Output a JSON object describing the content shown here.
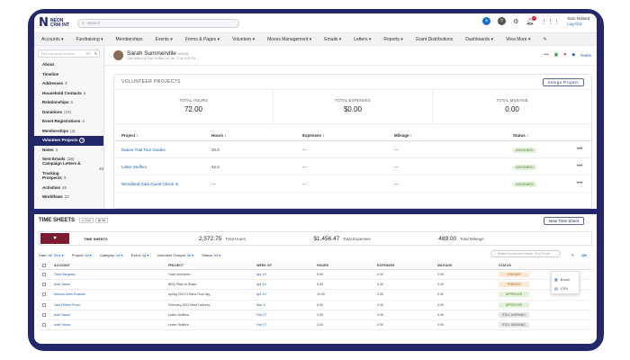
{
  "header": {
    "logo_main": "NEON",
    "logo_sub": "CRM·INT",
    "search_placeholder": "Search",
    "user_name": "Sam Noland",
    "user_action": "Log Out",
    "notif_count": "1"
  },
  "nav": [
    "Accounts ▾",
    "Fundraising ▾",
    "Memberships",
    "Events ▾",
    "Forms & Pages ▾",
    "Volunteer ▾",
    "Moves Management ▾",
    "Emails ▾",
    "Letters ▾",
    "Reports ▾",
    "Grant Distributions",
    "Dashboards ▾",
    "View More ▾"
  ],
  "sidebar": {
    "search_placeholder": "Find account section",
    "count": "27",
    "items": [
      {
        "label": "About",
        "count": ""
      },
      {
        "label": "Timeline",
        "count": ""
      },
      {
        "label": "Addresses",
        "count": "3"
      },
      {
        "label": "Household Contacts",
        "count": "5"
      },
      {
        "label": "Relationships",
        "count": "5"
      },
      {
        "label": "Donations",
        "count": "(19)"
      },
      {
        "label": "Event Registrations",
        "count": "3"
      },
      {
        "label": "Memberships",
        "count": "(3)"
      },
      {
        "label": "Volunteer Projects",
        "count": "3"
      },
      {
        "label": "Notes",
        "count": "3"
      },
      {
        "label": "Sent Emails",
        "count": "(35)"
      },
      {
        "label": "Campaign Letters & Tracking",
        "count": "49"
      },
      {
        "label": "Prospects",
        "count": "3"
      },
      {
        "label": "Activities",
        "count": "45"
      },
      {
        "label": "Workflows",
        "count": "10"
      }
    ]
  },
  "profile": {
    "name": "Sarah Summerville",
    "id": "#3945",
    "sub": "Last edited by Sam Noland on Jun 17 at 4:36 PM",
    "notes_label": "Notes"
  },
  "volunteer": {
    "title": "VOLUNTEER PROJECTS",
    "assign_label": "Assign Project",
    "stats": [
      {
        "label": "TOTAL HOURS",
        "value": "72.00"
      },
      {
        "label": "TOTAL EXPENSES",
        "value": "$0.00"
      },
      {
        "label": "TOTAL MILEAGE",
        "value": "0.00"
      }
    ],
    "columns": [
      "Project ↕",
      "Hours ↕",
      "Expenses ↕",
      "Mileage ↕",
      "Status ↕"
    ],
    "rows": [
      {
        "project": "Nature Trail Tour Guides",
        "hours": "20.0",
        "expenses": "—",
        "mileage": "—",
        "status": "ASSIGNED"
      },
      {
        "project": "Letter Stuffers",
        "hours": "52.0",
        "expenses": "—",
        "mileage": "—",
        "status": "ASSIGNED"
      },
      {
        "project": "Woodland Gala Guest Check In",
        "hours": "—",
        "expenses": "—",
        "mileage": "—",
        "status": "ASSIGNED"
      }
    ]
  },
  "timesheets": {
    "title": "TIME SHEETS",
    "toggle": [
      "≡ Grid",
      "▤ list"
    ],
    "new_label": "New Time Sheet",
    "summary_label": "TIME SHEETS",
    "hours_value": "2,572.75",
    "hours_label": "Total Hours",
    "expenses_value": "$1,456.47",
    "expenses_label": "Total Expenses",
    "mileage_value": "489.00",
    "mileage_label": "Total Mileage",
    "filters": [
      {
        "label": "Date:",
        "value": "All Time ▾"
      },
      {
        "label": "Project:",
        "value": "All ▾"
      },
      {
        "label": "Category:",
        "value": "All ▾"
      },
      {
        "label": "Event:",
        "value": "All ▾"
      },
      {
        "label": "Volunteer Groups:",
        "value": "All ▾"
      },
      {
        "label": "Status:",
        "value": "All ▾"
      }
    ],
    "search_placeholder": "Search by account name, ID or Email",
    "columns": [
      "ACCOUNT",
      "PROJECT",
      "WEEK OF",
      "HOURS",
      "EXPENSES",
      "MILEAGE",
      "STATUS"
    ],
    "rows": [
      {
        "account": "Trish Sargeant",
        "project": "Gala Volunteer!",
        "week": "Apr 15",
        "hours": "5.00",
        "expenses": "0.00",
        "mileage": "0.00",
        "status": "PENDING",
        "cls": "pending"
      },
      {
        "account": "Ariel Saxon",
        "project": "BBQ Plate to Share",
        "week": "Apr 15",
        "hours": "5.00",
        "expenses": "0.00",
        "mileage": "0.00",
        "status": "PENDING",
        "cls": "pending"
      },
      {
        "account": "Monica Jules Rossiter",
        "project": "spring 2023 4 Hand Hour lag",
        "week": "Apr 15",
        "hours": "10.00",
        "expenses": "0.00",
        "mileage": "0.00",
        "status": "APPROVED",
        "cls": "approved"
      },
      {
        "account": "Jack Robert Prom",
        "project": "February 2023 Meal Delivery",
        "week": "Mar 4",
        "hours": "5.00",
        "expenses": "0.00",
        "mileage": "0.00",
        "status": "APPROVED",
        "cls": "approved"
      },
      {
        "account": "Ariel Saxon",
        "project": "Letter Stuffers",
        "week": "Feb 27",
        "hours": "3.00",
        "expenses": "0.00",
        "mileage": "0.00",
        "status": "STILL WORKING",
        "cls": "working"
      },
      {
        "account": "Ariel Saxon",
        "project": "Letter Stuffers",
        "week": "Feb 27",
        "hours": "3.00",
        "expenses": "0.00",
        "mileage": "0.00",
        "status": "STILL WORKING",
        "cls": "working"
      }
    ],
    "export_options": [
      "Excel",
      "CSV"
    ]
  }
}
